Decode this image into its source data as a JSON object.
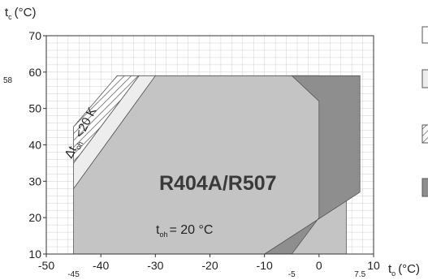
{
  "chart_data": {
    "type": "area",
    "title": "R404A/R507",
    "x_axis": {
      "label_main": "t",
      "label_sub": "o",
      "label_unit": "(°C)",
      "range": [
        -50,
        10
      ],
      "ticks": [
        -50,
        -40,
        -30,
        -20,
        -10,
        0,
        10
      ],
      "tick_labels": [
        "-50",
        "-40",
        "-30",
        "-20",
        "-10",
        "0",
        "10"
      ],
      "extra_ticks": [
        -45,
        -5,
        7.5
      ],
      "extra_tick_labels": [
        "-45",
        "-5",
        "7.5"
      ]
    },
    "y_axis": {
      "label_main": "t",
      "label_sub": "c",
      "label_unit": "(°C)",
      "range": [
        10,
        70
      ],
      "ticks": [
        10,
        20,
        30,
        40,
        50,
        60,
        70
      ],
      "tick_labels": [
        "10",
        "20",
        "30",
        "40",
        "50",
        "60",
        "70"
      ],
      "extra_ticks": [
        58
      ],
      "extra_tick_labels": [
        "58"
      ]
    },
    "grid": true,
    "regions": [
      {
        "id": "main",
        "color": "#c4c4c4",
        "points": [
          [
            -45,
            10
          ],
          [
            -45,
            28
          ],
          [
            -30,
            59
          ],
          [
            0,
            59
          ],
          [
            5,
            52
          ],
          [
            5,
            10
          ],
          [
            -10,
            10
          ]
        ]
      },
      {
        "id": "band",
        "color": "#ededed",
        "points": [
          [
            -45,
            35
          ],
          [
            -45,
            28
          ],
          [
            -30,
            59
          ],
          [
            -33,
            59
          ]
        ]
      },
      {
        "id": "hatched",
        "color": "#ffffff",
        "points": [
          [
            -45,
            45
          ],
          [
            -45,
            35
          ],
          [
            -33,
            59
          ],
          [
            -37,
            59
          ]
        ]
      },
      {
        "id": "dark",
        "color": "#8e8e8e",
        "points": [
          [
            0,
            59
          ],
          [
            7.5,
            59
          ],
          [
            7.5,
            27
          ],
          [
            -10,
            10
          ],
          [
            -5,
            10
          ],
          [
            0,
            20
          ],
          [
            0,
            52
          ],
          [
            -5,
            59
          ]
        ]
      }
    ],
    "annotations": {
      "delta_prefix": "Δt",
      "delta_sub": "oh",
      "delta_suffix": " <20 K",
      "toh_main": "t",
      "toh_sub": "oh",
      "toh_value": "= 20 °C"
    },
    "legend_placement": "right",
    "legend_swatches": [
      "white",
      "light",
      "hatched",
      "dark"
    ]
  }
}
